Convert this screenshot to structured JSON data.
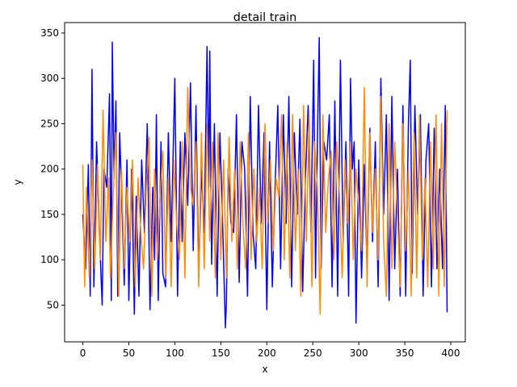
{
  "chart_data": {
    "type": "line",
    "title": "detail train",
    "xlabel": "x",
    "ylabel": "y",
    "xlim": [
      -19.8,
      415.8
    ],
    "ylim": [
      9.5,
      361.5
    ],
    "xticks": [
      0,
      50,
      100,
      150,
      200,
      250,
      300,
      350,
      400
    ],
    "yticks": [
      50,
      100,
      150,
      200,
      250,
      300,
      350
    ],
    "grid": false,
    "legend": "none",
    "series": [
      {
        "color": "#0000ff",
        "x": [
          0,
          3,
          6,
          8,
          10,
          12,
          15,
          18,
          21,
          23,
          26,
          29,
          31,
          32,
          34,
          36,
          38,
          40,
          42,
          45,
          48,
          50,
          53,
          56,
          58,
          61,
          64,
          67,
          70,
          73,
          76,
          78,
          80,
          82,
          85,
          87,
          90,
          93,
          96,
          100,
          103,
          106,
          108,
          111,
          114,
          117,
          120,
          123,
          126,
          129,
          132,
          135,
          137,
          138,
          140,
          143,
          146,
          149,
          152,
          155,
          156,
          158,
          161,
          164,
          167,
          170,
          173,
          176,
          179,
          182,
          185,
          188,
          191,
          194,
          197,
          200,
          203,
          206,
          209,
          212,
          215,
          218,
          221,
          224,
          227,
          230,
          233,
          236,
          239,
          242,
          245,
          248,
          251,
          253,
          255,
          257,
          259,
          262,
          265,
          268,
          271,
          274,
          277,
          280,
          283,
          286,
          289,
          291,
          293,
          295,
          297,
          300,
          303,
          306,
          309,
          312,
          315,
          318,
          321,
          324,
          327,
          330,
          333,
          336,
          339,
          342,
          345,
          348,
          351,
          354,
          356,
          358,
          361,
          364,
          367,
          370,
          373,
          376,
          379,
          382,
          385,
          388,
          391,
          394,
          396
        ],
        "y": [
          150,
          90,
          205,
          60,
          310,
          70,
          230,
          130,
          50,
          200,
          180,
          283,
          55,
          340,
          190,
          275,
          60,
          240,
          180,
          72,
          210,
          55,
          200,
          40,
          170,
          60,
          210,
          130,
          250,
          45,
          180,
          100,
          260,
          55,
          230,
          85,
          70,
          240,
          120,
          300,
          60,
          230,
          120,
          240,
          160,
          295,
          110,
          270,
          80,
          200,
          130,
          335,
          180,
          330,
          95,
          250,
          60,
          240,
          140,
          25,
          50,
          200,
          140,
          130,
          260,
          75,
          230,
          200,
          60,
          280,
          130,
          90,
          270,
          140,
          240,
          45,
          230,
          70,
          180,
          270,
          90,
          260,
          140,
          280,
          70,
          240,
          150,
          255,
          65,
          190,
          270,
          130,
          320,
          80,
          230,
          345,
          90,
          230,
          210,
          260,
          70,
          275,
          60,
          320,
          120,
          230,
          60,
          300,
          200,
          230,
          30,
          210,
          80,
          205,
          90,
          245,
          120,
          230,
          70,
          300,
          150,
          260,
          55,
          280,
          90,
          200,
          60,
          270,
          60,
          250,
          320,
          85,
          270,
          150,
          260,
          60,
          210,
          250,
          70,
          245,
          90,
          200,
          90,
          270,
          42
        ]
      },
      {
        "color": "#ff8c00",
        "x": [
          0,
          2,
          4,
          7,
          10,
          13,
          16,
          19,
          22,
          25,
          28,
          30,
          33,
          36,
          39,
          42,
          45,
          48,
          51,
          54,
          57,
          60,
          63,
          66,
          69,
          72,
          75,
          78,
          81,
          84,
          87,
          90,
          93,
          96,
          99,
          102,
          105,
          108,
          111,
          114,
          117,
          120,
          123,
          126,
          129,
          132,
          135,
          138,
          141,
          144,
          147,
          150,
          153,
          156,
          159,
          162,
          165,
          168,
          171,
          174,
          177,
          180,
          183,
          186,
          189,
          192,
          195,
          198,
          201,
          204,
          207,
          210,
          213,
          216,
          219,
          222,
          225,
          228,
          231,
          234,
          237,
          240,
          243,
          246,
          249,
          252,
          255,
          258,
          261,
          264,
          267,
          270,
          273,
          276,
          279,
          282,
          285,
          288,
          291,
          294,
          297,
          300,
          303,
          306,
          309,
          312,
          315,
          318,
          321,
          324,
          327,
          330,
          333,
          336,
          339,
          342,
          345,
          348,
          351,
          354,
          357,
          360,
          363,
          366,
          369,
          372,
          375,
          378,
          381,
          384,
          387,
          390,
          393,
          396
        ],
        "y": [
          205,
          70,
          180,
          80,
          210,
          90,
          205,
          100,
          265,
          120,
          190,
          80,
          170,
          240,
          60,
          200,
          90,
          180,
          120,
          210,
          70,
          190,
          130,
          90,
          180,
          235,
          60,
          200,
          100,
          170,
          220,
          80,
          190,
          70,
          210,
          140,
          100,
          230,
          80,
          290,
          180,
          160,
          230,
          70,
          240,
          90,
          250,
          120,
          230,
          80,
          240,
          100,
          210,
          80,
          235,
          120,
          200,
          90,
          230,
          140,
          90,
          240,
          100,
          200,
          120,
          180,
          90,
          250,
          140,
          210,
          110,
          190,
          170,
          260,
          100,
          230,
          80,
          260,
          110,
          200,
          60,
          270,
          120,
          260,
          70,
          230,
          180,
          40,
          260,
          130,
          190,
          220,
          100,
          230,
          170,
          80,
          210,
          140,
          230,
          100,
          200,
          160,
          110,
          290,
          70,
          240,
          130,
          200,
          100,
          280,
          120,
          60,
          250,
          90,
          230,
          150,
          70,
          250,
          110,
          200,
          60,
          240,
          80,
          260,
          100,
          190,
          70,
          230,
          90,
          260,
          60,
          250,
          70,
          265
        ]
      }
    ]
  }
}
